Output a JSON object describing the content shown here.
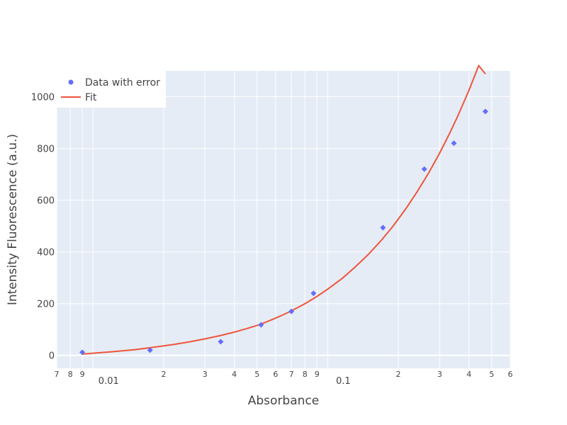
{
  "chart_data": {
    "type": "scatter",
    "xlabel": "Absorbance",
    "ylabel": "Intensity Fluorescence (a.u.)",
    "x_scale": "log",
    "xlim": [
      0.007,
      0.6
    ],
    "ylim": [
      -50,
      1100
    ],
    "grid": true,
    "legend_position": "top-left",
    "colors": {
      "plot_bg": "#e5ecf6",
      "grid": "#ffffff",
      "data": "#636efa",
      "fit": "#ef553b",
      "text": "#444444"
    },
    "x_major_ticks": [
      {
        "value": 0.01,
        "label": "0.01"
      },
      {
        "value": 0.1,
        "label": "0.1"
      }
    ],
    "x_minor_ticks": [
      {
        "value": 0.007,
        "label": "7"
      },
      {
        "value": 0.008,
        "label": "8"
      },
      {
        "value": 0.009,
        "label": "9"
      },
      {
        "value": 0.02,
        "label": "2"
      },
      {
        "value": 0.03,
        "label": "3"
      },
      {
        "value": 0.04,
        "label": "4"
      },
      {
        "value": 0.05,
        "label": "5"
      },
      {
        "value": 0.06,
        "label": "6"
      },
      {
        "value": 0.07,
        "label": "7"
      },
      {
        "value": 0.08,
        "label": "8"
      },
      {
        "value": 0.09,
        "label": "9"
      },
      {
        "value": 0.2,
        "label": "2"
      },
      {
        "value": 0.3,
        "label": "3"
      },
      {
        "value": 0.4,
        "label": "4"
      },
      {
        "value": 0.5,
        "label": "5"
      },
      {
        "value": 0.6,
        "label": "6"
      }
    ],
    "y_ticks": [
      {
        "value": 0,
        "label": "0"
      },
      {
        "value": 200,
        "label": "200"
      },
      {
        "value": 400,
        "label": "400"
      },
      {
        "value": 600,
        "label": "600"
      },
      {
        "value": 800,
        "label": "800"
      },
      {
        "value": 1000,
        "label": "1000"
      }
    ],
    "series": [
      {
        "name": "Data with error",
        "mode": "markers",
        "x": [
          0.009,
          0.0175,
          0.035,
          0.052,
          0.07,
          0.087,
          0.172,
          0.258,
          0.345,
          0.47
        ],
        "y": [
          12,
          20,
          53,
          118,
          170,
          240,
          494,
          720,
          820,
          943
        ]
      },
      {
        "name": "Fit",
        "mode": "lines",
        "x": [
          0.009,
          0.012,
          0.015,
          0.018,
          0.022,
          0.026,
          0.03,
          0.035,
          0.04,
          0.045,
          0.05,
          0.055,
          0.06,
          0.065,
          0.07,
          0.08,
          0.09,
          0.1,
          0.115,
          0.13,
          0.15,
          0.17,
          0.19,
          0.215,
          0.24,
          0.27,
          0.3,
          0.33,
          0.36,
          0.4,
          0.44,
          0.47
        ],
        "y": [
          5,
          14,
          22,
          31,
          42,
          53,
          64,
          77,
          90,
          103,
          116,
          130,
          144,
          158,
          172,
          200,
          228,
          256,
          297,
          339,
          393,
          447,
          500,
          566,
          631,
          707,
          782,
          856,
          929,
          1025,
          1120,
          1088
        ]
      }
    ]
  }
}
